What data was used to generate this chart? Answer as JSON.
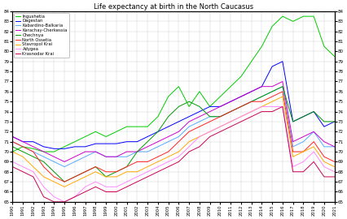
{
  "title": "Life expectancy at birth in the North Caucasus",
  "years": [
    1990,
    1991,
    1992,
    1993,
    1994,
    1995,
    1996,
    1997,
    1998,
    1999,
    2000,
    2001,
    2002,
    2003,
    2004,
    2005,
    2006,
    2007,
    2008,
    2009,
    2010,
    2011,
    2012,
    2013,
    2014,
    2015,
    2016,
    2017,
    2018,
    2019,
    2020,
    2021
  ],
  "series": [
    {
      "name": "Ingushetia",
      "color": "#00cc00",
      "data": [
        70.0,
        70.5,
        70.3,
        70.0,
        70.0,
        70.5,
        71.0,
        71.5,
        72.0,
        71.5,
        72.0,
        72.5,
        72.5,
        72.5,
        73.5,
        75.5,
        76.5,
        74.5,
        76.0,
        74.5,
        75.5,
        76.5,
        77.5,
        79.0,
        80.5,
        82.5,
        83.5,
        83.0,
        83.5,
        83.5,
        80.5,
        79.5
      ]
    },
    {
      "name": "Dagestan",
      "color": "#0000ff",
      "data": [
        71.5,
        71.0,
        71.0,
        70.5,
        70.3,
        70.3,
        70.5,
        70.5,
        70.8,
        70.8,
        70.8,
        71.0,
        71.0,
        71.5,
        72.0,
        72.5,
        73.0,
        73.5,
        74.0,
        74.5,
        74.5,
        75.0,
        75.5,
        76.0,
        76.5,
        78.5,
        79.0,
        73.0,
        73.5,
        74.0,
        72.5,
        73.0
      ]
    },
    {
      "name": "Kabardino-Balkaria",
      "color": "#55aaff",
      "data": [
        71.0,
        70.5,
        70.0,
        69.5,
        69.0,
        68.5,
        69.0,
        69.5,
        70.0,
        69.5,
        69.5,
        69.5,
        70.0,
        70.0,
        70.5,
        71.0,
        71.5,
        72.5,
        73.0,
        73.5,
        73.5,
        74.0,
        74.5,
        75.0,
        75.5,
        76.0,
        76.5,
        70.5,
        71.0,
        72.0,
        70.5,
        70.5
      ]
    },
    {
      "name": "Karachay-Cherkessia",
      "color": "#cc00cc",
      "data": [
        71.5,
        71.0,
        70.5,
        70.0,
        69.5,
        69.0,
        69.5,
        70.0,
        70.0,
        69.5,
        69.5,
        70.0,
        70.0,
        70.5,
        71.0,
        71.5,
        72.0,
        73.0,
        73.5,
        74.0,
        74.5,
        75.0,
        75.5,
        76.0,
        76.5,
        76.5,
        77.0,
        71.0,
        71.5,
        72.0,
        71.0,
        70.5
      ]
    },
    {
      "name": "Chechnya",
      "color": "#009900",
      "data": [
        70.5,
        70.0,
        69.5,
        69.0,
        68.0,
        67.0,
        67.5,
        68.0,
        68.5,
        67.5,
        68.0,
        68.5,
        70.0,
        71.0,
        72.0,
        73.5,
        74.5,
        75.0,
        74.5,
        73.5,
        73.5,
        74.0,
        74.5,
        75.0,
        75.5,
        76.0,
        76.5,
        73.0,
        73.5,
        74.0,
        73.0,
        73.0
      ]
    },
    {
      "name": "North Ossetia",
      "color": "#ff2222",
      "data": [
        71.0,
        70.5,
        70.0,
        68.5,
        67.5,
        67.0,
        67.5,
        68.0,
        68.5,
        68.0,
        68.0,
        68.5,
        69.0,
        69.0,
        69.5,
        70.0,
        71.0,
        72.0,
        72.5,
        73.0,
        73.5,
        74.0,
        74.5,
        75.0,
        75.0,
        75.5,
        76.0,
        70.0,
        70.0,
        71.0,
        69.5,
        69.0
      ]
    },
    {
      "name": "Stavropol Krai",
      "color": "#ffaa00",
      "data": [
        70.0,
        69.5,
        68.5,
        67.5,
        67.0,
        66.5,
        67.0,
        67.5,
        68.0,
        67.5,
        67.5,
        68.0,
        68.0,
        68.5,
        69.0,
        69.5,
        70.0,
        71.0,
        71.5,
        72.0,
        72.5,
        73.0,
        73.5,
        74.0,
        74.5,
        75.0,
        75.5,
        69.5,
        70.0,
        70.5,
        69.0,
        68.5
      ]
    },
    {
      "name": "Adygea",
      "color": "#ff88ff",
      "data": [
        69.0,
        68.5,
        68.0,
        66.5,
        65.5,
        65.0,
        65.5,
        66.5,
        67.0,
        66.5,
        66.5,
        67.0,
        67.5,
        68.0,
        68.5,
        69.0,
        69.5,
        70.5,
        71.5,
        72.0,
        72.5,
        73.0,
        73.5,
        74.0,
        74.5,
        74.5,
        74.5,
        68.5,
        69.0,
        70.0,
        68.5,
        68.0
      ]
    },
    {
      "name": "Krasnodar Krai",
      "color": "#cc0055",
      "data": [
        68.5,
        68.0,
        67.5,
        65.5,
        65.0,
        65.0,
        65.5,
        66.0,
        66.5,
        66.0,
        66.0,
        66.5,
        67.0,
        67.5,
        68.0,
        68.5,
        69.0,
        70.0,
        70.5,
        71.5,
        72.0,
        72.5,
        73.0,
        73.5,
        74.0,
        74.0,
        74.5,
        68.0,
        68.0,
        69.0,
        67.5,
        67.5
      ]
    }
  ],
  "ylim": [
    65,
    84
  ],
  "ytick_step": 1,
  "background": "#ffffff",
  "legend_loc": "upper left"
}
